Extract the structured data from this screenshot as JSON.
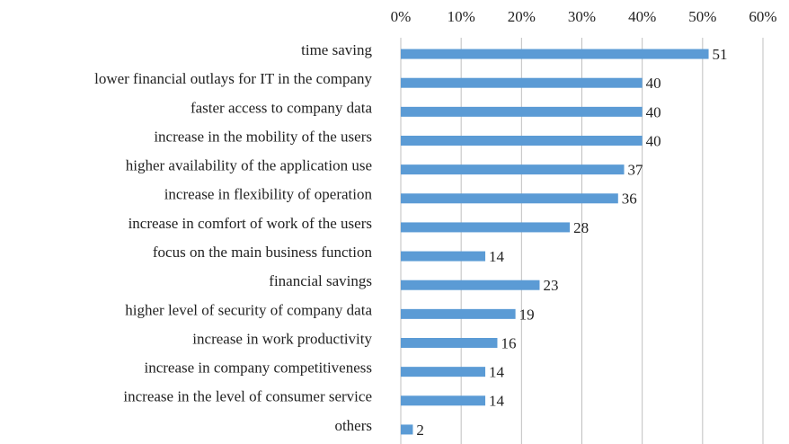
{
  "chart_data": {
    "type": "bar",
    "orientation": "horizontal",
    "categories": [
      "time saving",
      "lower financial outlays for IT in the company",
      "faster access to company data",
      "increase in the mobility of the users",
      "higher availability of the application use",
      "increase in flexibility of operation",
      "increase in comfort of work of the users",
      "focus on the main business function",
      "financial savings",
      "higher level of security of company data",
      "increase in work productivity",
      "increase in company competitiveness",
      "increase in the level of consumer service",
      "others"
    ],
    "values": [
      51,
      40,
      40,
      40,
      37,
      36,
      28,
      14,
      23,
      19,
      16,
      14,
      14,
      2
    ],
    "color": "#5b9bd5",
    "xlim": [
      0,
      60
    ],
    "xticks": [
      {
        "value": 0,
        "label": "0%"
      },
      {
        "value": 10,
        "label": "10%"
      },
      {
        "value": 20,
        "label": "20%"
      },
      {
        "value": 30,
        "label": "30%"
      },
      {
        "value": 40,
        "label": "40%"
      },
      {
        "value": 50,
        "label": "50%"
      },
      {
        "value": 60,
        "label": "60%"
      }
    ],
    "grid": true
  }
}
